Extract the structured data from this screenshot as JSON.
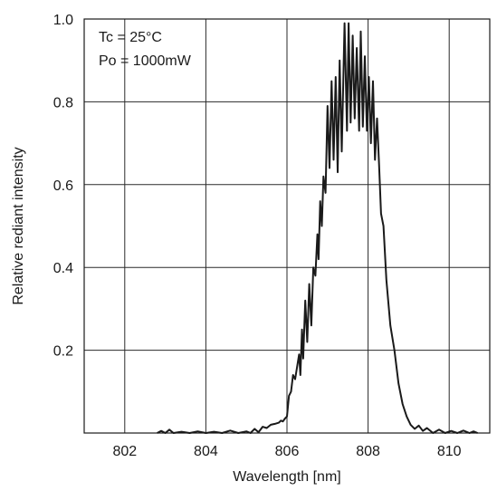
{
  "chart_data": {
    "type": "line",
    "xlabel": "Wavelength [nm]",
    "ylabel": "Relative rediant intensity",
    "xlim": [
      801,
      811
    ],
    "ylim": [
      0,
      1.0
    ],
    "x_ticks": [
      802,
      804,
      806,
      808,
      810
    ],
    "y_ticks": [
      0.2,
      0.4,
      0.6,
      0.8,
      1.0
    ],
    "x_tick_labels": [
      "802",
      "804",
      "806",
      "808",
      "810"
    ],
    "y_tick_labels": [
      "0.2",
      "0.4",
      "0.6",
      "0.8",
      "1.0"
    ],
    "grid": true,
    "annotations": [
      "Tc = 25°C",
      "Po = 1000mW"
    ],
    "series": [
      {
        "color": "#1a1a1a",
        "points": [
          [
            802.8,
            0.0
          ],
          [
            802.9,
            0.005
          ],
          [
            803.0,
            0.0
          ],
          [
            803.1,
            0.008
          ],
          [
            803.2,
            0.0
          ],
          [
            803.4,
            0.003
          ],
          [
            803.6,
            0.0
          ],
          [
            803.8,
            0.004
          ],
          [
            804.0,
            0.0
          ],
          [
            804.2,
            0.003
          ],
          [
            804.4,
            0.0
          ],
          [
            804.6,
            0.006
          ],
          [
            804.8,
            0.0
          ],
          [
            805.0,
            0.004
          ],
          [
            805.1,
            0.0
          ],
          [
            805.2,
            0.01
          ],
          [
            805.3,
            0.002
          ],
          [
            805.4,
            0.015
          ],
          [
            805.5,
            0.012
          ],
          [
            805.6,
            0.02
          ],
          [
            805.7,
            0.022
          ],
          [
            805.8,
            0.025
          ],
          [
            805.85,
            0.03
          ],
          [
            805.9,
            0.028
          ],
          [
            805.95,
            0.035
          ],
          [
            806.0,
            0.04
          ],
          [
            806.05,
            0.09
          ],
          [
            806.1,
            0.1
          ],
          [
            806.15,
            0.14
          ],
          [
            806.2,
            0.13
          ],
          [
            806.25,
            0.16
          ],
          [
            806.3,
            0.19
          ],
          [
            806.33,
            0.14
          ],
          [
            806.37,
            0.25
          ],
          [
            806.4,
            0.18
          ],
          [
            806.45,
            0.32
          ],
          [
            806.5,
            0.22
          ],
          [
            806.55,
            0.36
          ],
          [
            806.6,
            0.26
          ],
          [
            806.65,
            0.4
          ],
          [
            806.7,
            0.38
          ],
          [
            806.75,
            0.48
          ],
          [
            806.78,
            0.42
          ],
          [
            806.82,
            0.56
          ],
          [
            806.86,
            0.5
          ],
          [
            806.9,
            0.62
          ],
          [
            806.95,
            0.58
          ],
          [
            807.0,
            0.79
          ],
          [
            807.05,
            0.64
          ],
          [
            807.1,
            0.85
          ],
          [
            807.15,
            0.66
          ],
          [
            807.2,
            0.86
          ],
          [
            807.25,
            0.63
          ],
          [
            807.3,
            0.9
          ],
          [
            807.35,
            0.68
          ],
          [
            807.42,
            0.99
          ],
          [
            807.48,
            0.73
          ],
          [
            807.52,
            0.99
          ],
          [
            807.57,
            0.75
          ],
          [
            807.62,
            0.96
          ],
          [
            807.67,
            0.76
          ],
          [
            807.72,
            0.93
          ],
          [
            807.78,
            0.73
          ],
          [
            807.82,
            0.97
          ],
          [
            807.87,
            0.74
          ],
          [
            807.92,
            0.91
          ],
          [
            807.97,
            0.73
          ],
          [
            808.02,
            0.86
          ],
          [
            808.07,
            0.7
          ],
          [
            808.12,
            0.85
          ],
          [
            808.17,
            0.66
          ],
          [
            808.22,
            0.76
          ],
          [
            808.27,
            0.65
          ],
          [
            808.32,
            0.53
          ],
          [
            808.38,
            0.5
          ],
          [
            808.45,
            0.37
          ],
          [
            808.55,
            0.26
          ],
          [
            808.65,
            0.2
          ],
          [
            808.75,
            0.12
          ],
          [
            808.85,
            0.07
          ],
          [
            808.95,
            0.04
          ],
          [
            809.05,
            0.02
          ],
          [
            809.15,
            0.01
          ],
          [
            809.25,
            0.018
          ],
          [
            809.35,
            0.005
          ],
          [
            809.45,
            0.012
          ],
          [
            809.6,
            0.0
          ],
          [
            809.75,
            0.008
          ],
          [
            809.9,
            0.0
          ],
          [
            810.05,
            0.005
          ],
          [
            810.2,
            0.0
          ],
          [
            810.35,
            0.006
          ],
          [
            810.5,
            0.0
          ],
          [
            810.6,
            0.004
          ],
          [
            810.7,
            0.0
          ]
        ]
      }
    ]
  }
}
